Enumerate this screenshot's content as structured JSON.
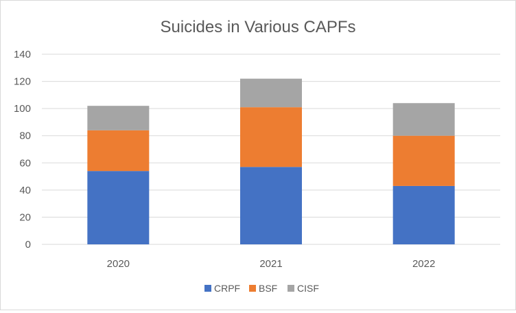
{
  "chart_data": {
    "type": "bar",
    "stacked": true,
    "title": "Suicides in Various CAPFs",
    "xlabel": "",
    "ylabel": "",
    "categories": [
      "2020",
      "2021",
      "2022"
    ],
    "series": [
      {
        "name": "CRPF",
        "values": [
          54,
          57,
          43
        ],
        "color": "#4472c4"
      },
      {
        "name": "BSF",
        "values": [
          30,
          44,
          37
        ],
        "color": "#ed7d31"
      },
      {
        "name": "CISF",
        "values": [
          18,
          21,
          24
        ],
        "color": "#a5a5a5"
      }
    ],
    "ylim": [
      0,
      140
    ],
    "yticks": [
      0,
      20,
      40,
      60,
      80,
      100,
      120,
      140
    ],
    "grid": true,
    "legend_position": "bottom"
  }
}
